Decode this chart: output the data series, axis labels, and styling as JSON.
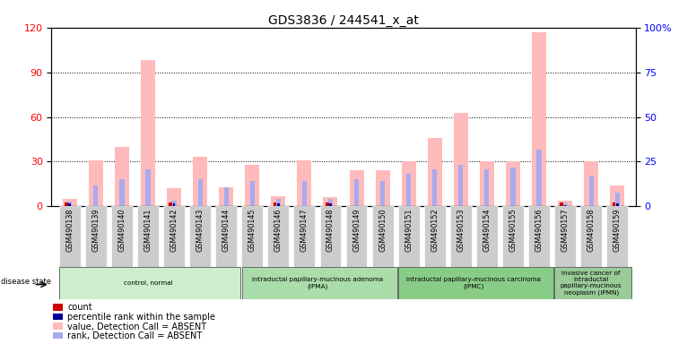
{
  "title": "GDS3836 / 244541_x_at",
  "samples": [
    "GSM490138",
    "GSM490139",
    "GSM490140",
    "GSM490141",
    "GSM490142",
    "GSM490143",
    "GSM490144",
    "GSM490145",
    "GSM490146",
    "GSM490147",
    "GSM490148",
    "GSM490149",
    "GSM490150",
    "GSM490151",
    "GSM490152",
    "GSM490153",
    "GSM490154",
    "GSM490155",
    "GSM490156",
    "GSM490157",
    "GSM490158",
    "GSM490159"
  ],
  "value_absent": [
    5,
    31,
    40,
    98,
    12,
    33,
    13,
    28,
    7,
    31,
    6,
    24,
    24,
    30,
    46,
    63,
    30,
    30,
    117,
    4,
    30,
    14
  ],
  "rank_absent": [
    3,
    14,
    18,
    25,
    4,
    18,
    13,
    17,
    5,
    17,
    5,
    18,
    17,
    22,
    25,
    28,
    25,
    26,
    38,
    2,
    20,
    9
  ],
  "count_present": [
    1,
    0,
    0,
    0,
    1,
    0,
    0,
    0,
    1,
    0,
    1,
    0,
    0,
    0,
    0,
    0,
    0,
    0,
    0,
    1,
    0,
    1
  ],
  "rank_present": [
    2,
    0,
    0,
    0,
    2,
    0,
    0,
    0,
    2,
    0,
    2,
    0,
    0,
    0,
    0,
    0,
    0,
    0,
    0,
    1,
    0,
    2
  ],
  "disease_groups": [
    {
      "label": "control, normal",
      "start": 0,
      "end": 7,
      "color": "#cceecc"
    },
    {
      "label": "intraductal papillary-mucinous adenoma\n(IPMA)",
      "start": 7,
      "end": 13,
      "color": "#aaddaa"
    },
    {
      "label": "intraductal papillary-mucinous carcinoma\n(IPMC)",
      "start": 13,
      "end": 19,
      "color": "#88cc88"
    },
    {
      "label": "invasive cancer of\nintraductal\npapillary-mucinous\nneoplasm (IPMN)",
      "start": 19,
      "end": 22,
      "color": "#99cc99"
    }
  ],
  "ylim_left": [
    0,
    120
  ],
  "ylim_right": [
    0,
    100
  ],
  "left_yticks": [
    0,
    30,
    60,
    90,
    120
  ],
  "right_yticks": [
    0,
    25,
    50,
    75,
    100
  ],
  "color_value_absent": "#ffbbbb",
  "color_rank_absent": "#aaaaee",
  "color_count": "#cc0000",
  "color_rank": "#000099"
}
